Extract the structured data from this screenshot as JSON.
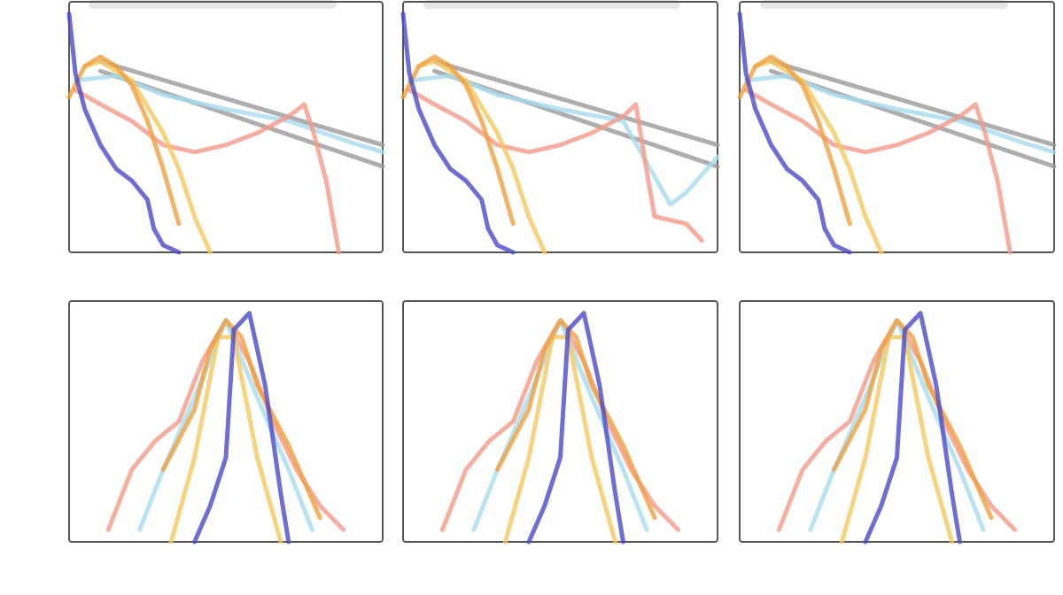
{
  "chart_data": [
    {
      "type": "line",
      "xlim": [
        0,
        1
      ],
      "ylim": [
        0,
        1.05
      ],
      "series": [
        {
          "color": "#9a9a9a",
          "x": [
            0.1,
            1
          ],
          "values": [
            0.8,
            0.45
          ]
        },
        {
          "color": "#9a9a9a",
          "x": [
            0.1,
            1
          ],
          "values": [
            0.76,
            0.36
          ]
        },
        {
          "color": "#a8dcee",
          "x": [
            0.02,
            0.15,
            0.3,
            0.5,
            0.7,
            0.9,
            1
          ],
          "values": [
            0.72,
            0.74,
            0.66,
            0.6,
            0.55,
            0.46,
            0.42
          ]
        },
        {
          "color": "#f29a88",
          "x": [
            0.02,
            0.1,
            0.2,
            0.3,
            0.4,
            0.5,
            0.6,
            0.7,
            0.75,
            0.78,
            0.82,
            0.86
          ],
          "values": [
            0.68,
            0.62,
            0.55,
            0.45,
            0.42,
            0.45,
            0.5,
            0.57,
            0.62,
            0.5,
            0.3,
            0
          ]
        },
        {
          "color": "#f5c860",
          "x": [
            0.05,
            0.1,
            0.2,
            0.3,
            0.35,
            0.4,
            0.45
          ],
          "values": [
            0.78,
            0.8,
            0.72,
            0.5,
            0.35,
            0.15,
            0
          ]
        },
        {
          "color": "#f0a040",
          "x": [
            0,
            0.05,
            0.1,
            0.15,
            0.2,
            0.25,
            0.3,
            0.35
          ],
          "values": [
            0.65,
            0.78,
            0.82,
            0.78,
            0.7,
            0.55,
            0.35,
            0.12
          ]
        },
        {
          "color": "#4a4ac8",
          "x": [
            0,
            0.02,
            0.05,
            0.1,
            0.15,
            0.2,
            0.25,
            0.27,
            0.3,
            0.35
          ],
          "values": [
            1,
            0.75,
            0.6,
            0.45,
            0.35,
            0.3,
            0.22,
            0.1,
            0.03,
            0
          ]
        }
      ]
    },
    {
      "type": "line",
      "xlim": [
        0,
        1
      ],
      "ylim": [
        0,
        1.05
      ],
      "series": [
        {
          "color": "#9a9a9a",
          "x": [
            0.1,
            1
          ],
          "values": [
            0.8,
            0.45
          ]
        },
        {
          "color": "#9a9a9a",
          "x": [
            0.1,
            1
          ],
          "values": [
            0.76,
            0.36
          ]
        },
        {
          "color": "#a8dcee",
          "x": [
            0.02,
            0.15,
            0.3,
            0.5,
            0.7,
            0.85,
            0.9,
            1
          ],
          "values": [
            0.72,
            0.74,
            0.66,
            0.6,
            0.55,
            0.2,
            0.25,
            0.4
          ]
        },
        {
          "color": "#f29a88",
          "x": [
            0.02,
            0.1,
            0.2,
            0.3,
            0.4,
            0.5,
            0.6,
            0.7,
            0.74,
            0.78,
            0.8,
            0.9,
            0.95
          ],
          "values": [
            0.68,
            0.62,
            0.55,
            0.45,
            0.42,
            0.45,
            0.5,
            0.57,
            0.62,
            0.3,
            0.15,
            0.12,
            0.05
          ]
        },
        {
          "color": "#f5c860",
          "x": [
            0.05,
            0.1,
            0.2,
            0.3,
            0.35,
            0.4,
            0.45
          ],
          "values": [
            0.78,
            0.8,
            0.72,
            0.5,
            0.35,
            0.15,
            0
          ]
        },
        {
          "color": "#f0a040",
          "x": [
            0,
            0.05,
            0.1,
            0.15,
            0.2,
            0.25,
            0.3,
            0.35
          ],
          "values": [
            0.65,
            0.78,
            0.82,
            0.78,
            0.7,
            0.55,
            0.35,
            0.12
          ]
        },
        {
          "color": "#4a4ac8",
          "x": [
            0,
            0.02,
            0.05,
            0.1,
            0.15,
            0.2,
            0.25,
            0.27,
            0.3,
            0.35
          ],
          "values": [
            1,
            0.75,
            0.6,
            0.45,
            0.35,
            0.3,
            0.22,
            0.1,
            0.03,
            0
          ]
        }
      ]
    },
    {
      "type": "line",
      "xlim": [
        0,
        1
      ],
      "ylim": [
        0,
        1.05
      ],
      "series": [
        {
          "color": "#9a9a9a",
          "x": [
            0.1,
            1
          ],
          "values": [
            0.8,
            0.45
          ]
        },
        {
          "color": "#9a9a9a",
          "x": [
            0.1,
            1
          ],
          "values": [
            0.76,
            0.36
          ]
        },
        {
          "color": "#a8dcee",
          "x": [
            0.02,
            0.15,
            0.3,
            0.5,
            0.7,
            0.9,
            1
          ],
          "values": [
            0.72,
            0.74,
            0.66,
            0.6,
            0.55,
            0.46,
            0.42
          ]
        },
        {
          "color": "#f29a88",
          "x": [
            0.02,
            0.1,
            0.2,
            0.3,
            0.4,
            0.5,
            0.6,
            0.7,
            0.75,
            0.78,
            0.82,
            0.86
          ],
          "values": [
            0.68,
            0.62,
            0.55,
            0.45,
            0.42,
            0.45,
            0.5,
            0.57,
            0.62,
            0.5,
            0.3,
            0
          ]
        },
        {
          "color": "#f5c860",
          "x": [
            0.05,
            0.1,
            0.2,
            0.3,
            0.35,
            0.4,
            0.45
          ],
          "values": [
            0.78,
            0.8,
            0.72,
            0.5,
            0.35,
            0.15,
            0
          ]
        },
        {
          "color": "#f0a040",
          "x": [
            0,
            0.05,
            0.1,
            0.15,
            0.2,
            0.25,
            0.3,
            0.35
          ],
          "values": [
            0.65,
            0.78,
            0.82,
            0.78,
            0.7,
            0.55,
            0.35,
            0.12
          ]
        },
        {
          "color": "#4a4ac8",
          "x": [
            0,
            0.02,
            0.05,
            0.1,
            0.15,
            0.2,
            0.25,
            0.27,
            0.3,
            0.35
          ],
          "values": [
            1,
            0.75,
            0.6,
            0.45,
            0.35,
            0.3,
            0.22,
            0.1,
            0.03,
            0
          ]
        }
      ]
    },
    {
      "type": "line",
      "xlim": [
        -1,
        1
      ],
      "ylim": [
        0,
        1
      ],
      "series": [
        {
          "color": "#f29a88",
          "x": [
            -0.75,
            -0.6,
            -0.45,
            -0.3,
            -0.15,
            0,
            0.15,
            0.3,
            0.45,
            0.6,
            0.75
          ],
          "values": [
            0.05,
            0.3,
            0.42,
            0.5,
            0.75,
            0.92,
            0.75,
            0.5,
            0.3,
            0.15,
            0.05
          ]
        },
        {
          "color": "#a8dcee",
          "x": [
            -0.55,
            -0.4,
            -0.2,
            0,
            0.2,
            0.4,
            0.55
          ],
          "values": [
            0.05,
            0.3,
            0.6,
            0.92,
            0.6,
            0.3,
            0.05
          ]
        },
        {
          "color": "#f5c860",
          "x": [
            -0.35,
            -0.2,
            -0.05,
            0.05,
            0.2,
            0.35
          ],
          "values": [
            0,
            0.35,
            0.85,
            0.85,
            0.35,
            0
          ]
        },
        {
          "color": "#f0a040",
          "x": [
            -0.4,
            -0.2,
            -0.1,
            0,
            0.1,
            0.2,
            0.4,
            0.6
          ],
          "values": [
            0.3,
            0.55,
            0.8,
            0.92,
            0.85,
            0.65,
            0.4,
            0.1
          ]
        },
        {
          "color": "#4a4ac8",
          "x": [
            -0.2,
            -0.1,
            0,
            0.05,
            0.15,
            0.25,
            0.35,
            0.4
          ],
          "values": [
            0,
            0.15,
            0.35,
            0.88,
            0.95,
            0.65,
            0.2,
            0
          ]
        }
      ]
    },
    {
      "type": "line",
      "xlim": [
        -1,
        1
      ],
      "ylim": [
        0,
        1
      ],
      "series": [
        {
          "color": "#f29a88",
          "x": [
            -0.75,
            -0.6,
            -0.45,
            -0.3,
            -0.15,
            0,
            0.15,
            0.3,
            0.45,
            0.6,
            0.75
          ],
          "values": [
            0.05,
            0.3,
            0.42,
            0.5,
            0.75,
            0.92,
            0.75,
            0.5,
            0.3,
            0.15,
            0.05
          ]
        },
        {
          "color": "#a8dcee",
          "x": [
            -0.55,
            -0.4,
            -0.2,
            0,
            0.2,
            0.4,
            0.55
          ],
          "values": [
            0.05,
            0.3,
            0.6,
            0.92,
            0.6,
            0.3,
            0.05
          ]
        },
        {
          "color": "#f5c860",
          "x": [
            -0.35,
            -0.2,
            -0.05,
            0.05,
            0.2,
            0.35
          ],
          "values": [
            0,
            0.35,
            0.85,
            0.85,
            0.35,
            0
          ]
        },
        {
          "color": "#f0a040",
          "x": [
            -0.4,
            -0.2,
            -0.1,
            0,
            0.1,
            0.2,
            0.4,
            0.6
          ],
          "values": [
            0.3,
            0.55,
            0.8,
            0.92,
            0.85,
            0.65,
            0.4,
            0.1
          ]
        },
        {
          "color": "#4a4ac8",
          "x": [
            -0.2,
            -0.1,
            0,
            0.05,
            0.15,
            0.25,
            0.35,
            0.4
          ],
          "values": [
            0,
            0.15,
            0.35,
            0.88,
            0.95,
            0.65,
            0.2,
            0
          ]
        }
      ]
    },
    {
      "type": "line",
      "xlim": [
        -1,
        1
      ],
      "ylim": [
        0,
        1
      ],
      "series": [
        {
          "color": "#f29a88",
          "x": [
            -0.75,
            -0.6,
            -0.45,
            -0.3,
            -0.15,
            0,
            0.15,
            0.3,
            0.45,
            0.6,
            0.75
          ],
          "values": [
            0.05,
            0.3,
            0.42,
            0.5,
            0.75,
            0.92,
            0.75,
            0.5,
            0.3,
            0.15,
            0.05
          ]
        },
        {
          "color": "#a8dcee",
          "x": [
            -0.55,
            -0.4,
            -0.2,
            0,
            0.2,
            0.4,
            0.55
          ],
          "values": [
            0.05,
            0.3,
            0.6,
            0.92,
            0.6,
            0.3,
            0.05
          ]
        },
        {
          "color": "#f5c860",
          "x": [
            -0.35,
            -0.2,
            -0.05,
            0.05,
            0.2,
            0.35
          ],
          "values": [
            0,
            0.35,
            0.85,
            0.85,
            0.35,
            0
          ]
        },
        {
          "color": "#f0a040",
          "x": [
            -0.4,
            -0.2,
            -0.1,
            0,
            0.1,
            0.2,
            0.4,
            0.6
          ],
          "values": [
            0.3,
            0.55,
            0.8,
            0.92,
            0.85,
            0.65,
            0.4,
            0.1
          ]
        },
        {
          "color": "#4a4ac8",
          "x": [
            -0.2,
            -0.1,
            0,
            0.05,
            0.15,
            0.25,
            0.35,
            0.4
          ],
          "values": [
            0,
            0.15,
            0.35,
            0.88,
            0.95,
            0.65,
            0.2,
            0
          ]
        }
      ]
    }
  ]
}
